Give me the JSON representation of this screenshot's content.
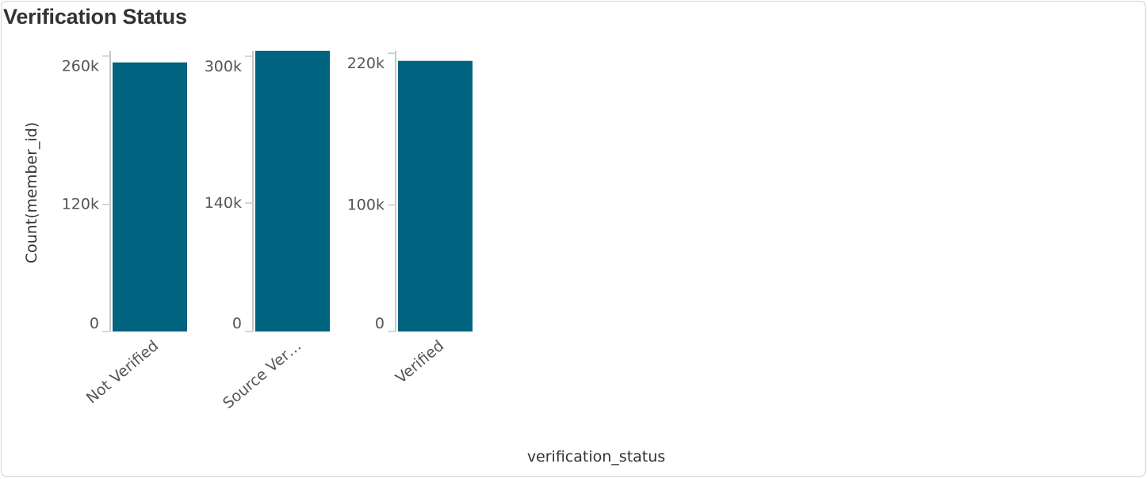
{
  "chart_data": {
    "type": "bar",
    "title": "Verification Status",
    "xlabel": "verification_status",
    "ylabel": "Count(member_id)",
    "categories": [
      "Not Verified",
      "Source Ver…",
      "Verified"
    ],
    "values": [
      254000,
      306000,
      214000
    ],
    "facets": [
      {
        "category": "Not Verified",
        "value": 254000,
        "ylim": [
          0,
          265000
        ],
        "ticks": [
          {
            "value": 0,
            "label": "0"
          },
          {
            "value": 120000,
            "label": "120k"
          },
          {
            "value": 260000,
            "label": "260k"
          }
        ]
      },
      {
        "category": "Source Ver…",
        "value": 306000,
        "ylim": [
          0,
          306000
        ],
        "ticks": [
          {
            "value": 0,
            "label": "0"
          },
          {
            "value": 140000,
            "label": "140k"
          },
          {
            "value": 300000,
            "label": "300k"
          }
        ]
      },
      {
        "category": "Verified",
        "value": 214000,
        "ylim": [
          0,
          222000
        ],
        "ticks": [
          {
            "value": 0,
            "label": "0"
          },
          {
            "value": 100000,
            "label": "100k"
          },
          {
            "value": 220000,
            "label": "220k"
          }
        ]
      }
    ],
    "grid": false,
    "legend": "none",
    "bar_color": "#00637f",
    "axis_color": "#c8c8c8"
  }
}
